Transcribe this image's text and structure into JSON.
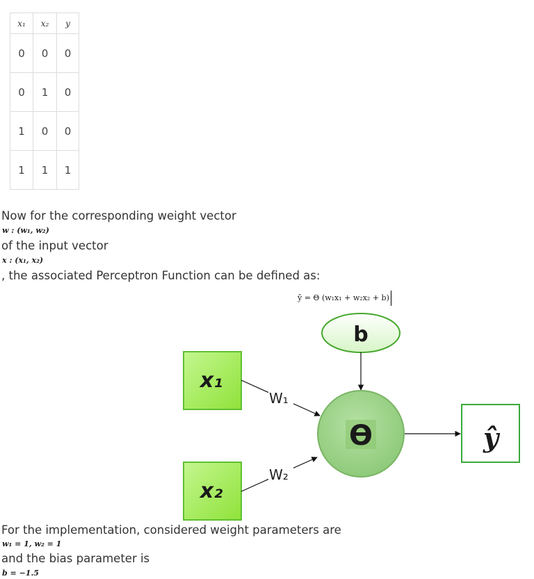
{
  "table": {
    "headers": [
      "𝑥₁",
      "𝑥₂",
      "𝑦"
    ],
    "rows": [
      [
        "0",
        "0",
        "0"
      ],
      [
        "0",
        "1",
        "0"
      ],
      [
        "1",
        "0",
        "0"
      ],
      [
        "1",
        "1",
        "1"
      ]
    ]
  },
  "text": {
    "line1": "Now for the corresponding weight vector",
    "math1": "w : (w₁, w₂)",
    "line2": "of the input vector",
    "math2": "x : (x₁, x₂)",
    "line3": ", the associated Perceptron Function can be defined as:",
    "formula": "ŷ = Θ (w₁x₁ + w₂x₂ + b)",
    "line4": "For the implementation, considered weight parameters are",
    "math4": "w₁ = 1, w₂ = 1",
    "line5": "and the bias parameter is",
    "math5": "b = −1.5"
  },
  "diagram": {
    "input1": "x₁",
    "input2": "x₂",
    "weight1": "W₁",
    "weight2": "W₂",
    "bias": "b",
    "activation": "ϴ",
    "output": "ŷ",
    "colors": {
      "input_fill_light": "#c4f78f",
      "input_fill_dark": "#8fe23a",
      "input_stroke": "#5fbf32",
      "bias_fill": "#eefbe6",
      "bias_stroke": "#47a82e",
      "node_fill": "#93cf7f",
      "node_stroke": "#79b564",
      "output_stroke": "#3aa83a"
    }
  }
}
